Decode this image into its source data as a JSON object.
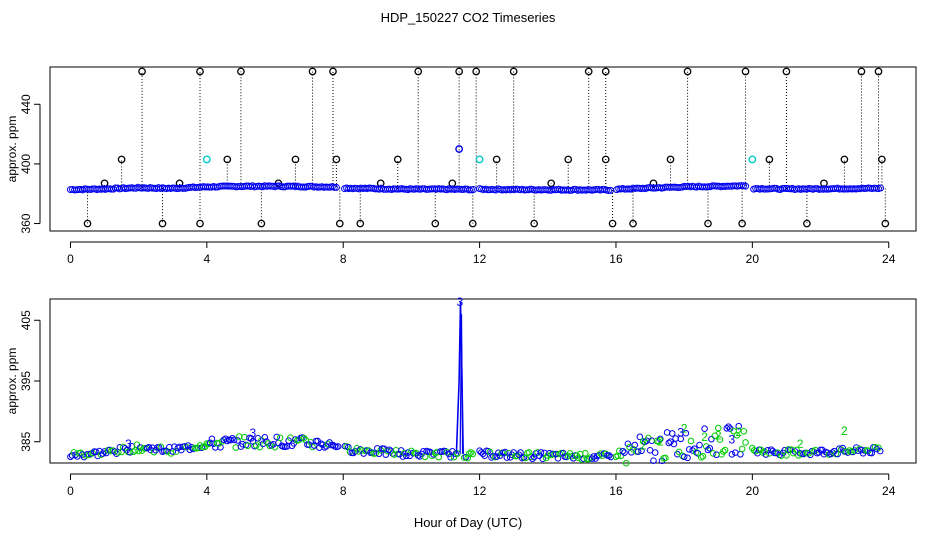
{
  "title": "HDP_150227  CO2 Timeseries",
  "xlabel": "Hour of Day (UTC)",
  "colors": {
    "black": "#000000",
    "blue": "#0000ee",
    "cyan": "#00cccc",
    "green": "#00cc00"
  },
  "chart_data": [
    {
      "type": "scatter",
      "title": "HDP_150227  CO2 Timeseries",
      "xlabel": "",
      "ylabel": "approx. ppm",
      "xlim": [
        -0.6,
        24.8
      ],
      "ylim": [
        355,
        465
      ],
      "xticks": [
        0,
        4,
        8,
        12,
        16,
        20,
        24
      ],
      "yticks": [
        360,
        400,
        440
      ],
      "grid": false,
      "baseline": [
        {
          "x": 0,
          "y": 382.8
        },
        {
          "x": 1,
          "y": 383.2
        },
        {
          "x": 2,
          "y": 384.0
        },
        {
          "x": 3,
          "y": 383.6
        },
        {
          "x": 4,
          "y": 384.6
        },
        {
          "x": 5,
          "y": 385.0
        },
        {
          "x": 6,
          "y": 385.0
        },
        {
          "x": 7,
          "y": 384.8
        },
        {
          "x": 7.8,
          "y": 384.5
        },
        {
          "x": 8,
          "y": 383.8
        },
        {
          "x": 9,
          "y": 383.4
        },
        {
          "x": 10,
          "y": 383.0
        },
        {
          "x": 11,
          "y": 383.0
        },
        {
          "x": 11.8,
          "y": 382.8
        },
        {
          "x": 12,
          "y": 383.0
        },
        {
          "x": 13,
          "y": 382.8
        },
        {
          "x": 14,
          "y": 382.7
        },
        {
          "x": 15,
          "y": 382.6
        },
        {
          "x": 15.9,
          "y": 382.5
        },
        {
          "x": 16,
          "y": 383.0
        },
        {
          "x": 17,
          "y": 383.8
        },
        {
          "x": 18,
          "y": 384.6
        },
        {
          "x": 19,
          "y": 385.0
        },
        {
          "x": 19.8,
          "y": 385.4
        },
        {
          "x": 20,
          "y": 383.5
        },
        {
          "x": 21,
          "y": 383.2
        },
        {
          "x": 22,
          "y": 383.3
        },
        {
          "x": 23,
          "y": 383.5
        },
        {
          "x": 23.8,
          "y": 383.6
        }
      ],
      "spikes": [
        {
          "x": 1.5,
          "y": 403
        },
        {
          "x": 2.1,
          "y": 462
        },
        {
          "x": 3.8,
          "y": 462
        },
        {
          "x": 4.6,
          "y": 403
        },
        {
          "x": 5.0,
          "y": 462
        },
        {
          "x": 6.6,
          "y": 403
        },
        {
          "x": 7.1,
          "y": 462
        },
        {
          "x": 7.7,
          "y": 462
        },
        {
          "x": 7.8,
          "y": 403
        },
        {
          "x": 9.6,
          "y": 403
        },
        {
          "x": 10.2,
          "y": 462
        },
        {
          "x": 11.4,
          "y": 462
        },
        {
          "x": 11.9,
          "y": 462
        },
        {
          "x": 12.5,
          "y": 403
        },
        {
          "x": 13.0,
          "y": 462
        },
        {
          "x": 14.6,
          "y": 403
        },
        {
          "x": 15.2,
          "y": 462
        },
        {
          "x": 15.7,
          "y": 462
        },
        {
          "x": 15.7,
          "y": 403
        },
        {
          "x": 17.6,
          "y": 403
        },
        {
          "x": 18.1,
          "y": 462
        },
        {
          "x": 19.8,
          "y": 462
        },
        {
          "x": 20.5,
          "y": 403
        },
        {
          "x": 21.0,
          "y": 462
        },
        {
          "x": 22.7,
          "y": 403
        },
        {
          "x": 23.2,
          "y": 462
        },
        {
          "x": 23.7,
          "y": 462
        },
        {
          "x": 23.8,
          "y": 403
        },
        {
          "x": 0.5,
          "y": 360
        },
        {
          "x": 2.7,
          "y": 360
        },
        {
          "x": 3.8,
          "y": 360
        },
        {
          "x": 5.6,
          "y": 360
        },
        {
          "x": 7.9,
          "y": 360
        },
        {
          "x": 8.5,
          "y": 360
        },
        {
          "x": 10.7,
          "y": 360
        },
        {
          "x": 11.8,
          "y": 360
        },
        {
          "x": 13.6,
          "y": 360
        },
        {
          "x": 15.9,
          "y": 360
        },
        {
          "x": 16.5,
          "y": 360
        },
        {
          "x": 18.7,
          "y": 360
        },
        {
          "x": 19.7,
          "y": 360
        },
        {
          "x": 21.6,
          "y": 360
        },
        {
          "x": 23.9,
          "y": 360
        },
        {
          "x": 1.0,
          "y": 387
        },
        {
          "x": 3.2,
          "y": 387
        },
        {
          "x": 6.1,
          "y": 387
        },
        {
          "x": 9.1,
          "y": 387
        },
        {
          "x": 11.2,
          "y": 387
        },
        {
          "x": 14.1,
          "y": 387
        },
        {
          "x": 17.1,
          "y": 387
        },
        {
          "x": 22.1,
          "y": 387
        }
      ],
      "highlights": [
        {
          "x": 4.0,
          "y": 403,
          "color": "cyan"
        },
        {
          "x": 11.4,
          "y": 410,
          "color": "blue"
        },
        {
          "x": 12.0,
          "y": 403,
          "color": "cyan"
        },
        {
          "x": 20.0,
          "y": 403,
          "color": "cyan"
        }
      ]
    },
    {
      "type": "scatter",
      "title": "",
      "xlabel": "Hour of Day (UTC)",
      "ylabel": "approx. ppm",
      "xlim": [
        -0.6,
        24.8
      ],
      "ylim": [
        381.5,
        408.5
      ],
      "xticks": [
        0,
        4,
        8,
        12,
        16,
        20,
        24
      ],
      "yticks": [
        385,
        395,
        405
      ],
      "grid": false,
      "spike": {
        "x": 11.45,
        "peak": 408,
        "label": "3"
      },
      "labels": [
        {
          "x": 1.7,
          "y": 384.6,
          "text": "3",
          "color": "blue"
        },
        {
          "x": 5.35,
          "y": 386.4,
          "text": "3",
          "color": "blue"
        },
        {
          "x": 11.42,
          "y": 408.0,
          "text": "3",
          "color": "blue"
        },
        {
          "x": 18.0,
          "y": 387.2,
          "text": "2",
          "color": "green"
        },
        {
          "x": 17.9,
          "y": 386.5,
          "text": "3",
          "color": "blue"
        },
        {
          "x": 18.6,
          "y": 385.8,
          "text": "2",
          "color": "green"
        },
        {
          "x": 19.0,
          "y": 386.0,
          "text": "2",
          "color": "green"
        },
        {
          "x": 19.6,
          "y": 386.6,
          "text": "2",
          "color": "green"
        },
        {
          "x": 19.4,
          "y": 385.4,
          "text": "3",
          "color": "blue"
        },
        {
          "x": 22.7,
          "y": 386.8,
          "text": "2",
          "color": "green"
        },
        {
          "x": 21.4,
          "y": 384.6,
          "text": "2",
          "color": "green"
        },
        {
          "x": 16.8,
          "y": 384.4,
          "text": "2",
          "color": "green"
        },
        {
          "x": 17.3,
          "y": 385.0,
          "text": "2",
          "color": "green"
        }
      ]
    }
  ]
}
